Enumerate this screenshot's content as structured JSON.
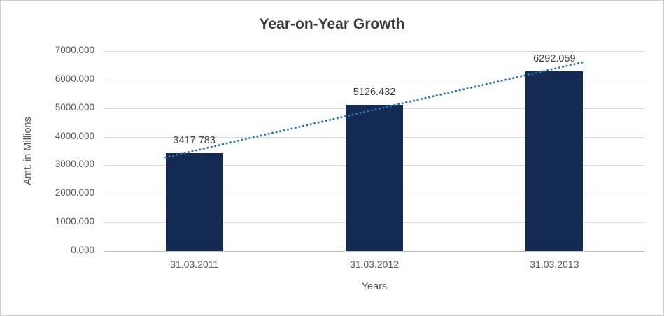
{
  "chart_data": {
    "type": "bar",
    "title": "Year-on-Year Growth",
    "xlabel": "Years",
    "ylabel": "Amt. in Millions",
    "categories": [
      "31.03.2011",
      "31.03.2012",
      "31.03.2013"
    ],
    "values": [
      3417.783,
      5126.432,
      6292.059
    ],
    "data_labels": [
      "3417.783",
      "5126.432",
      "6292.059"
    ],
    "ylim": [
      0,
      7000
    ],
    "ytick_step": 1000,
    "ytick_labels": [
      "0.000",
      "1000.000",
      "2000.000",
      "3000.000",
      "4000.000",
      "5000.000",
      "6000.000",
      "7000.000"
    ],
    "grid": true,
    "legend": "none",
    "trendline": {
      "type": "linear",
      "style": "dotted"
    },
    "colors": {
      "bar": "#142A52",
      "trendline": "#2E75B6",
      "gridline": "#D9D9D9",
      "axis_line": "#BFBFBF",
      "tick_text": "#595959",
      "title_text": "#3A3A3A"
    }
  }
}
